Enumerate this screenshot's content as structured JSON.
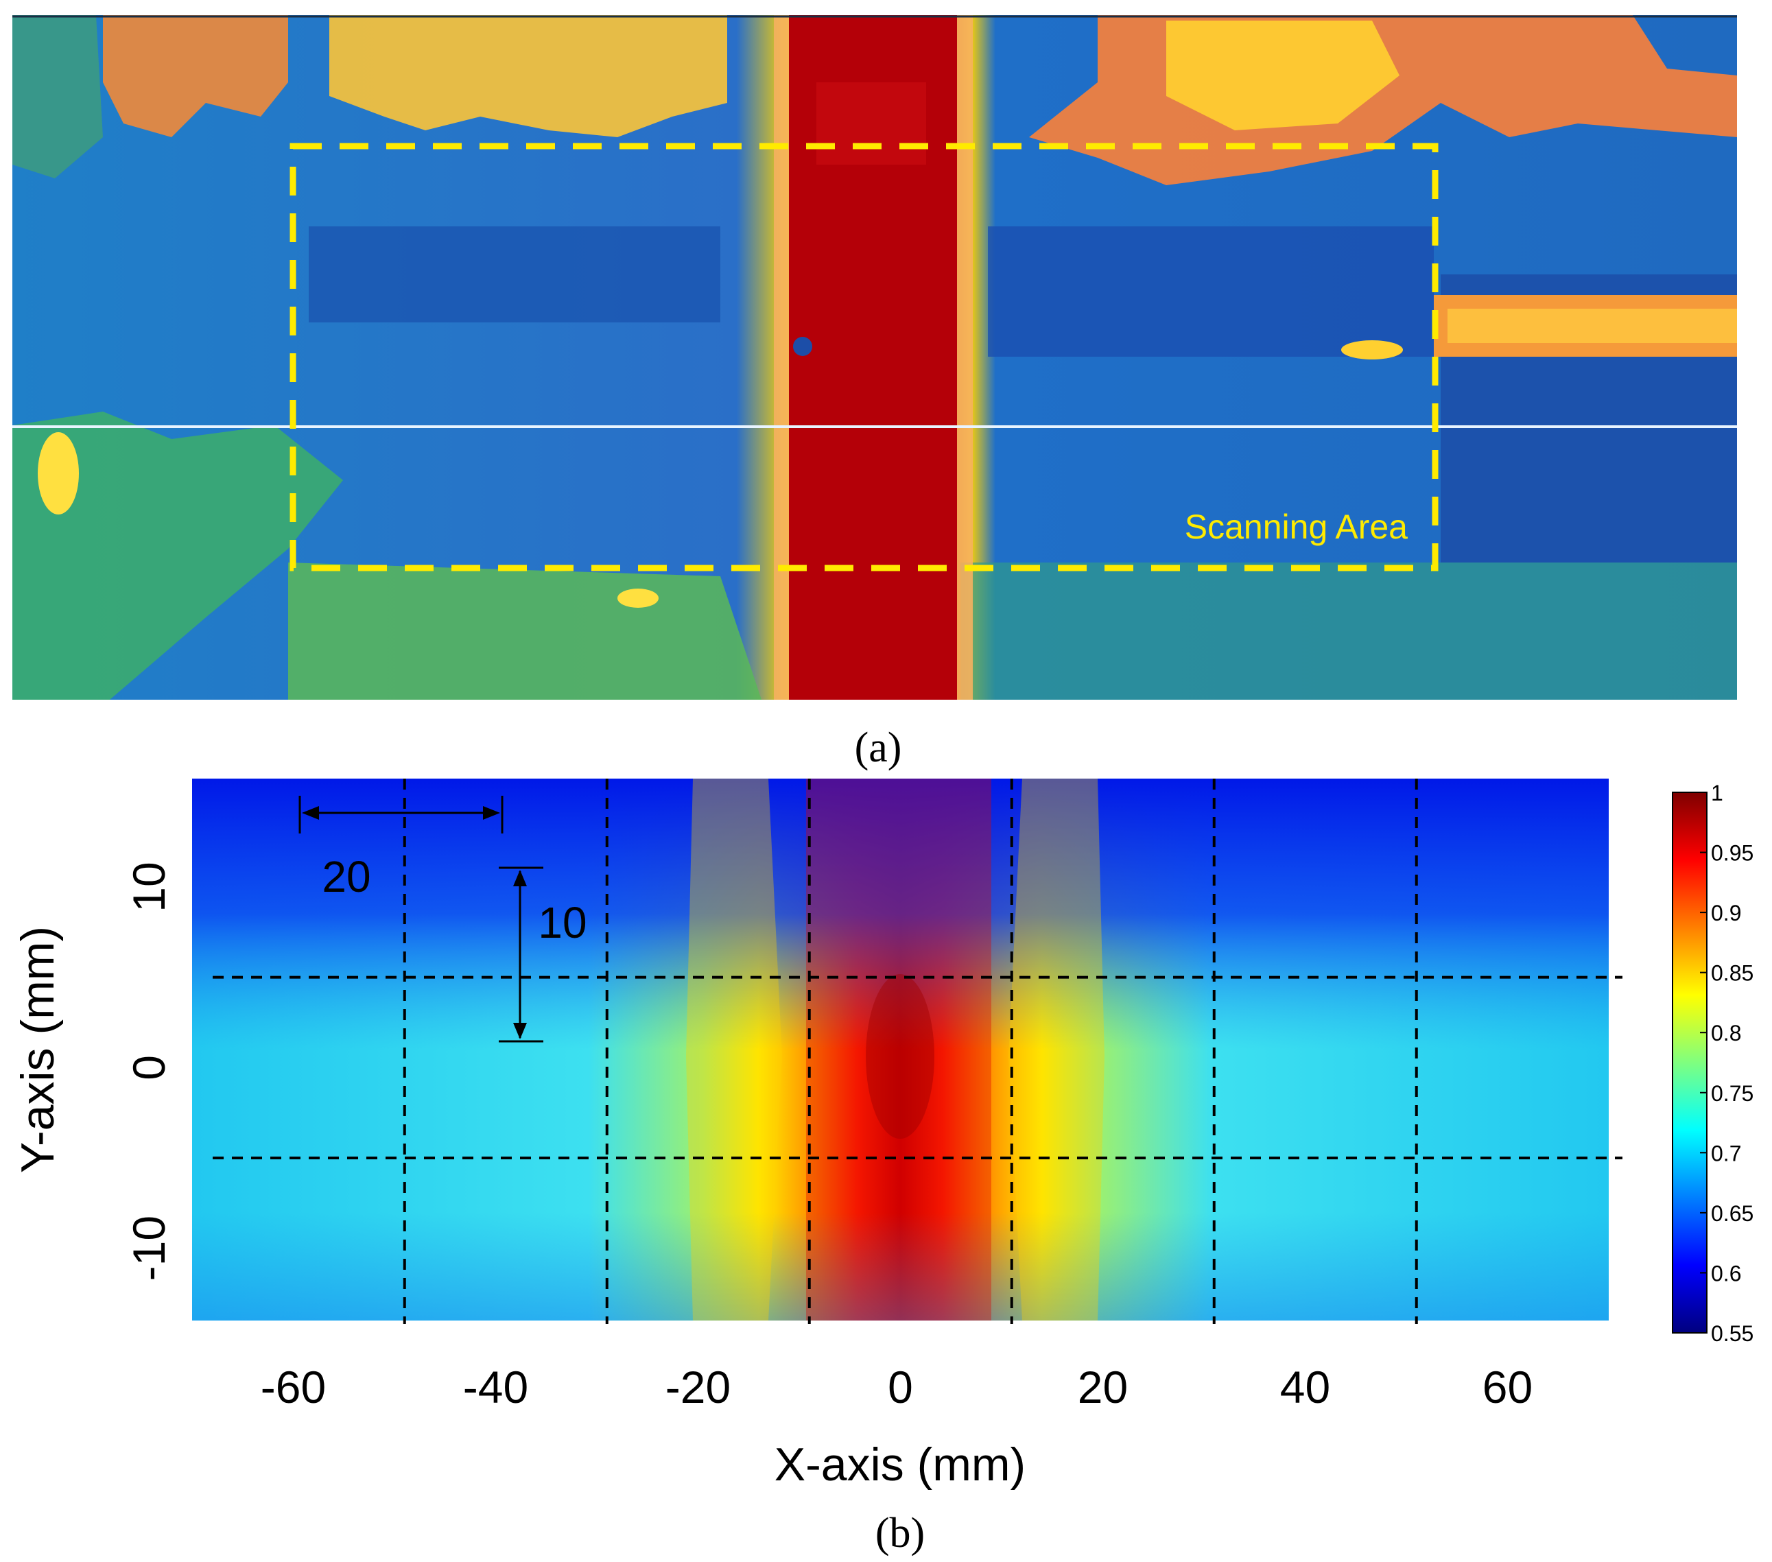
{
  "panel_a": {
    "label": "(a)",
    "annotation": "Scanning Area",
    "colors": {
      "highlight": "#ffeb00",
      "scanline": "#e0f0ff"
    }
  },
  "panel_b": {
    "label": "(b)",
    "dimension_x": "20",
    "dimension_y": "10",
    "colors": {
      "grid": "#000000"
    }
  },
  "colormap": [
    "#00007f",
    "#0000ff",
    "#007fff",
    "#00ffff",
    "#7fff7f",
    "#ffff00",
    "#ff7f00",
    "#ff0000",
    "#7f0000"
  ],
  "chart_data": [
    {
      "type": "heatmap",
      "title": "",
      "content": "image",
      "xlabel": "",
      "ylabel": "",
      "bands": [
        {
          "name": "",
          "x_range_fraction": [
            0.44,
            0.55
          ],
          "level": 1.0
        }
      ]
    },
    {
      "type": "heatmap",
      "title": "",
      "xlabel": "X-axis (mm)",
      "ylabel": "Y-axis (mm)",
      "xlim": [
        -70,
        70
      ],
      "ylim": [
        -14,
        16
      ],
      "x_ticks": [
        -60,
        -40,
        -20,
        0,
        20,
        40,
        60
      ],
      "x_tick_labels": [
        "-60",
        "-40",
        "-20",
        "0",
        "20",
        "40",
        "60"
      ],
      "y_ticks": [
        10,
        0,
        -10
      ],
      "y_tick_labels": [
        "10",
        "0",
        "-10"
      ],
      "grid_x": [
        -49,
        -29,
        -9,
        11,
        31,
        51
      ],
      "grid_y": [
        5,
        -5
      ],
      "grid_style": "dashed",
      "colorbar": {
        "min": 0.55,
        "max": 1,
        "ticks": [
          1,
          0.95,
          0.9,
          0.85,
          0.8,
          0.75,
          0.7,
          0.65,
          0.6,
          0.55
        ],
        "tick_labels": [
          "1",
          "0.95",
          "0.9",
          "0.85",
          "0.8",
          "0.75",
          "0.7",
          "0.65",
          "0.6",
          "0.55"
        ]
      },
      "field_profile_x": [
        -70,
        -40,
        -25,
        -18,
        -12,
        -6,
        0,
        6,
        12,
        18,
        25,
        40,
        70
      ],
      "field_profile_center": [
        0.7,
        0.71,
        0.74,
        0.8,
        0.88,
        0.95,
        0.99,
        0.95,
        0.88,
        0.8,
        0.74,
        0.71,
        0.71
      ],
      "field_profile_edge": [
        0.58,
        0.6,
        0.7,
        0.8,
        0.88,
        0.95,
        0.98,
        0.95,
        0.88,
        0.78,
        0.7,
        0.6,
        0.58
      ]
    }
  ]
}
